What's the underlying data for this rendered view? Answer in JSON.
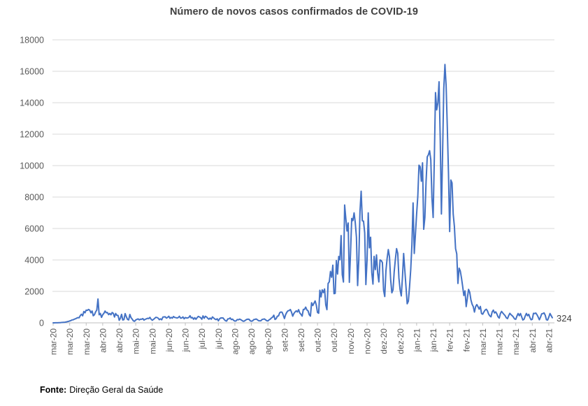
{
  "chart_data": {
    "type": "line",
    "title": "Número de novos casos confirmados de COVID-19",
    "xlabel": "",
    "ylabel": "",
    "ylim": [
      0,
      18000
    ],
    "y_tick_interval": 2000,
    "y_tick_labels": [
      "0",
      "2000",
      "4000",
      "6000",
      "8000",
      "10000",
      "12000",
      "14000",
      "16000",
      "18000"
    ],
    "x_tick_labels": [
      "mar-20",
      "mar-20",
      "mar-20",
      "abr-20",
      "abr-20",
      "mai-20",
      "mai-20",
      "jun-20",
      "jun-20",
      "jul-20",
      "jul-20",
      "ago-20",
      "ago-20",
      "ago-20",
      "set-20",
      "set-20",
      "out-20",
      "out-20",
      "nov-20",
      "nov-20",
      "dez-20",
      "dez-20",
      "jan-21",
      "jan-21",
      "fev-21",
      "fev-21",
      "mar-21",
      "mar-21",
      "mar-21",
      "abr-21",
      "abr-21"
    ],
    "x_tick_every_n_days": 14,
    "start_date": "2020-03-02",
    "frequency": "daily",
    "grid": true,
    "legend": false,
    "series_name": "novos casos confirmados",
    "last_point_label": "324",
    "series_color": "#4472C4",
    "gridline_color": "#D9D9D9",
    "axis_color": "#BFBFBF",
    "tick_label_color": "#595959",
    "values": [
      2,
      2,
      3,
      5,
      6,
      10,
      13,
      20,
      26,
      33,
      41,
      57,
      76,
      90,
      117,
      143,
      186,
      194,
      235,
      260,
      302,
      331,
      320,
      460,
      549,
      446,
      724,
      638,
      808,
      792,
      852,
      808,
      638,
      754,
      452,
      516,
      699,
      815,
      1516,
      515,
      598,
      349,
      514,
      603,
      750,
      643,
      657,
      521,
      595,
      516,
      657,
      603,
      371,
      595,
      475,
      472,
      163,
      295,
      540,
      183,
      203,
      588,
      392,
      219,
      187,
      533,
      331,
      236,
      123,
      98,
      187,
      219,
      252,
      187,
      233,
      227,
      271,
      173,
      226,
      252,
      288,
      271,
      350,
      227,
      165,
      219,
      285,
      350,
      342,
      297,
      200,
      257,
      195,
      366,
      377,
      382,
      300,
      346,
      421,
      287,
      346,
      300,
      403,
      342,
      331,
      307,
      336,
      417,
      298,
      312,
      377,
      259,
      336,
      311,
      310,
      345,
      451,
      311,
      341,
      229,
      328,
      229,
      328,
      412,
      374,
      328,
      232,
      443,
      292,
      418,
      375,
      291,
      232,
      306,
      233,
      375,
      313,
      246,
      204,
      261,
      127,
      252,
      312,
      313,
      311,
      209,
      135,
      111,
      252,
      255,
      313,
      209,
      238,
      153,
      112,
      120,
      213,
      193,
      238,
      204,
      152,
      102,
      112,
      168,
      217,
      234,
      229,
      132,
      101,
      124,
      206,
      219,
      244,
      201,
      138,
      126,
      131,
      211,
      230,
      247,
      192,
      135,
      124,
      192,
      234,
      312,
      365,
      486,
      217,
      268,
      425,
      444,
      646,
      687,
      673,
      486,
      276,
      522,
      672,
      770,
      780,
      849,
      673,
      425,
      594,
      692,
      765,
      691,
      838,
      623,
      543,
      427,
      854,
      854,
      1000,
      822,
      763,
      517,
      427,
      1278,
      1101,
      1246,
      1394,
      1128,
      661,
      612,
      2072,
      1646,
      2101,
      1926,
      2153,
      1148,
      839,
      2506,
      2608,
      3270,
      2898,
      3669,
      1856,
      1876,
      3960,
      3103,
      4224,
      4007,
      5550,
      3062,
      2596,
      7497,
      6640,
      5839,
      6352,
      2577,
      4452,
      6638,
      6500,
      6994,
      6383,
      5444,
      2371,
      3996,
      7089,
      8371,
      6489,
      6472,
      5726,
      2435,
      3996,
      6994,
      4771,
      5444,
      3197,
      2463,
      4226,
      3384,
      4320,
      3163,
      2600,
      4002,
      3962,
      3834,
      2078,
      1674,
      3312,
      4097,
      4659,
      4202,
      2745,
      1913,
      2100,
      3254,
      4038,
      4720,
      4423,
      2846,
      2099,
      1713,
      2893,
      4413,
      3333,
      2279,
      1214,
      1376,
      2289,
      3384,
      4956,
      7627,
      4413,
      5653,
      6923,
      8045,
      10027,
      9927,
      9008,
      10176,
      5949,
      6702,
      8972,
      10556,
      10698,
      10947,
      10385,
      7915,
      6702,
      10455,
      14647,
      13544,
      13987,
      15333,
      11721,
      6923,
      10765,
      14889,
      16432,
      15073,
      12435,
      9498,
      5805,
      9083,
      8902,
      6916,
      6132,
      4720,
      4387,
      2505,
      3480,
      3300,
      2856,
      2324,
      1739,
      2032,
      1032,
      1570,
      2128,
      1944,
      1463,
      1186,
      1032,
      686,
      1032,
      1160,
      1027,
      871,
      1043,
      589,
      549,
      691,
      810,
      866,
      765,
      558,
      446,
      383,
      691,
      810,
      627,
      698,
      565,
      386,
      302,
      594,
      726,
      627,
      540,
      456,
      320,
      267,
      460,
      605,
      516,
      453,
      368,
      246,
      226,
      431,
      594,
      453,
      592,
      387,
      181,
      226,
      431,
      598,
      452,
      544,
      331,
      194,
      226,
      605,
      592,
      623,
      516,
      368,
      194,
      366,
      575,
      592,
      630,
      480,
      196,
      176,
      366,
      594,
      462,
      324
    ]
  },
  "footer": {
    "label": "Fonte:",
    "text": "Direção Geral da Saúde"
  }
}
